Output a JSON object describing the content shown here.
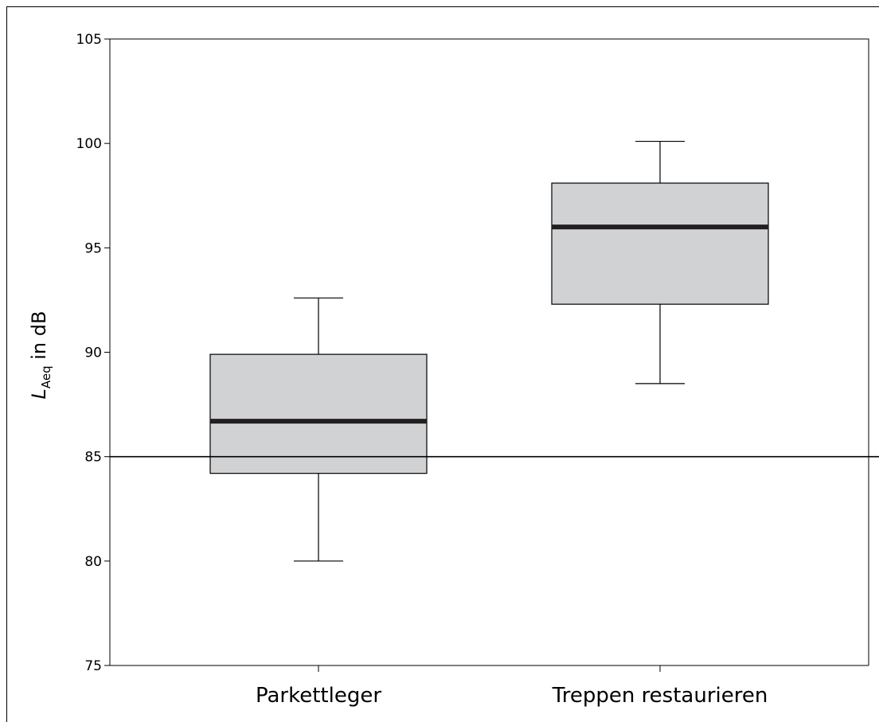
{
  "chart_data": {
    "type": "box",
    "title": "",
    "ylabel": {
      "symbol": "L",
      "subscript": "Aeq",
      "rest": " in dB"
    },
    "xlabel": "",
    "ylim": [
      75,
      105
    ],
    "yticks": [
      "75",
      "80",
      "85",
      "90",
      "95",
      "100",
      "105"
    ],
    "categories": [
      "Parkettleger",
      "Treppen restaurieren"
    ],
    "boxes": [
      {
        "category": "Parkettleger",
        "min": 80.0,
        "q1": 84.2,
        "median": 86.7,
        "q3": 89.9,
        "max": 92.6
      },
      {
        "category": "Treppen restaurieren",
        "min": 88.5,
        "q1": 92.3,
        "median": 96.0,
        "q3": 98.1,
        "max": 100.1
      }
    ],
    "reference_line": 85,
    "box_fill": "#d1d2d4",
    "median_color": "#231f20",
    "line_color": "#000000",
    "grid": false,
    "legend": "none"
  }
}
